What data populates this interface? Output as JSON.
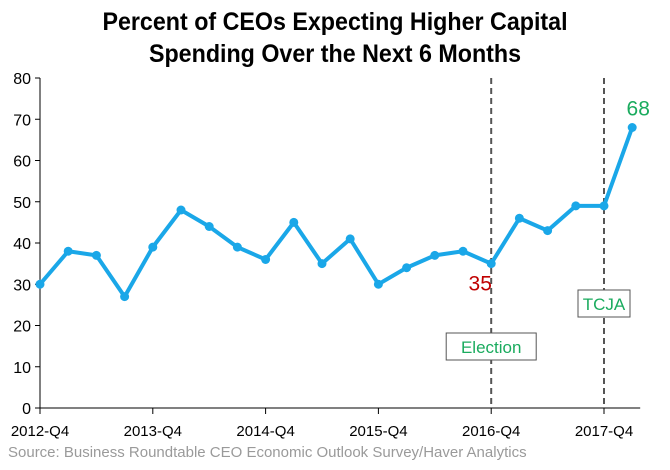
{
  "chart_data": {
    "type": "line",
    "title_lines": [
      "Percent of CEOs Expecting Higher Capital",
      "Spending Over the Next 6 Months"
    ],
    "x_labels": [
      "2012-Q4",
      "2013-Q1",
      "2013-Q2",
      "2013-Q3",
      "2013-Q4",
      "2014-Q1",
      "2014-Q2",
      "2014-Q3",
      "2014-Q4",
      "2015-Q1",
      "2015-Q2",
      "2015-Q3",
      "2015-Q4",
      "2016-Q1",
      "2016-Q2",
      "2016-Q3",
      "2016-Q4",
      "2017-Q1",
      "2017-Q2",
      "2017-Q3",
      "2017-Q4",
      "2018-Q1"
    ],
    "tick_labels": [
      "2012-Q4",
      "2013-Q4",
      "2014-Q4",
      "2015-Q4",
      "2016-Q4",
      "2017-Q4"
    ],
    "values": [
      30,
      38,
      37,
      27,
      39,
      48,
      44,
      39,
      36,
      45,
      35,
      41,
      30,
      34,
      37,
      38,
      35,
      46,
      43,
      49,
      49,
      68
    ],
    "ylim": [
      0,
      80
    ],
    "yticks": [
      0,
      10,
      20,
      30,
      40,
      50,
      60,
      70,
      80
    ],
    "line_color": "#1aa7e8",
    "annotations": [
      {
        "label": "35",
        "x": "2016-Q4",
        "value": 35,
        "color": "#c00000"
      },
      {
        "label": "68",
        "x": "2018-Q1",
        "value": 68,
        "color": "#1aab5e"
      }
    ],
    "events": [
      {
        "label": "Election",
        "x": "2016-Q4",
        "color": "#1aab5e"
      },
      {
        "label": "TCJA",
        "x": "2017-Q4",
        "color": "#1aab5e"
      }
    ]
  },
  "source": "Source: Business Roundtable CEO Economic Outlook Survey/Haver Analytics"
}
